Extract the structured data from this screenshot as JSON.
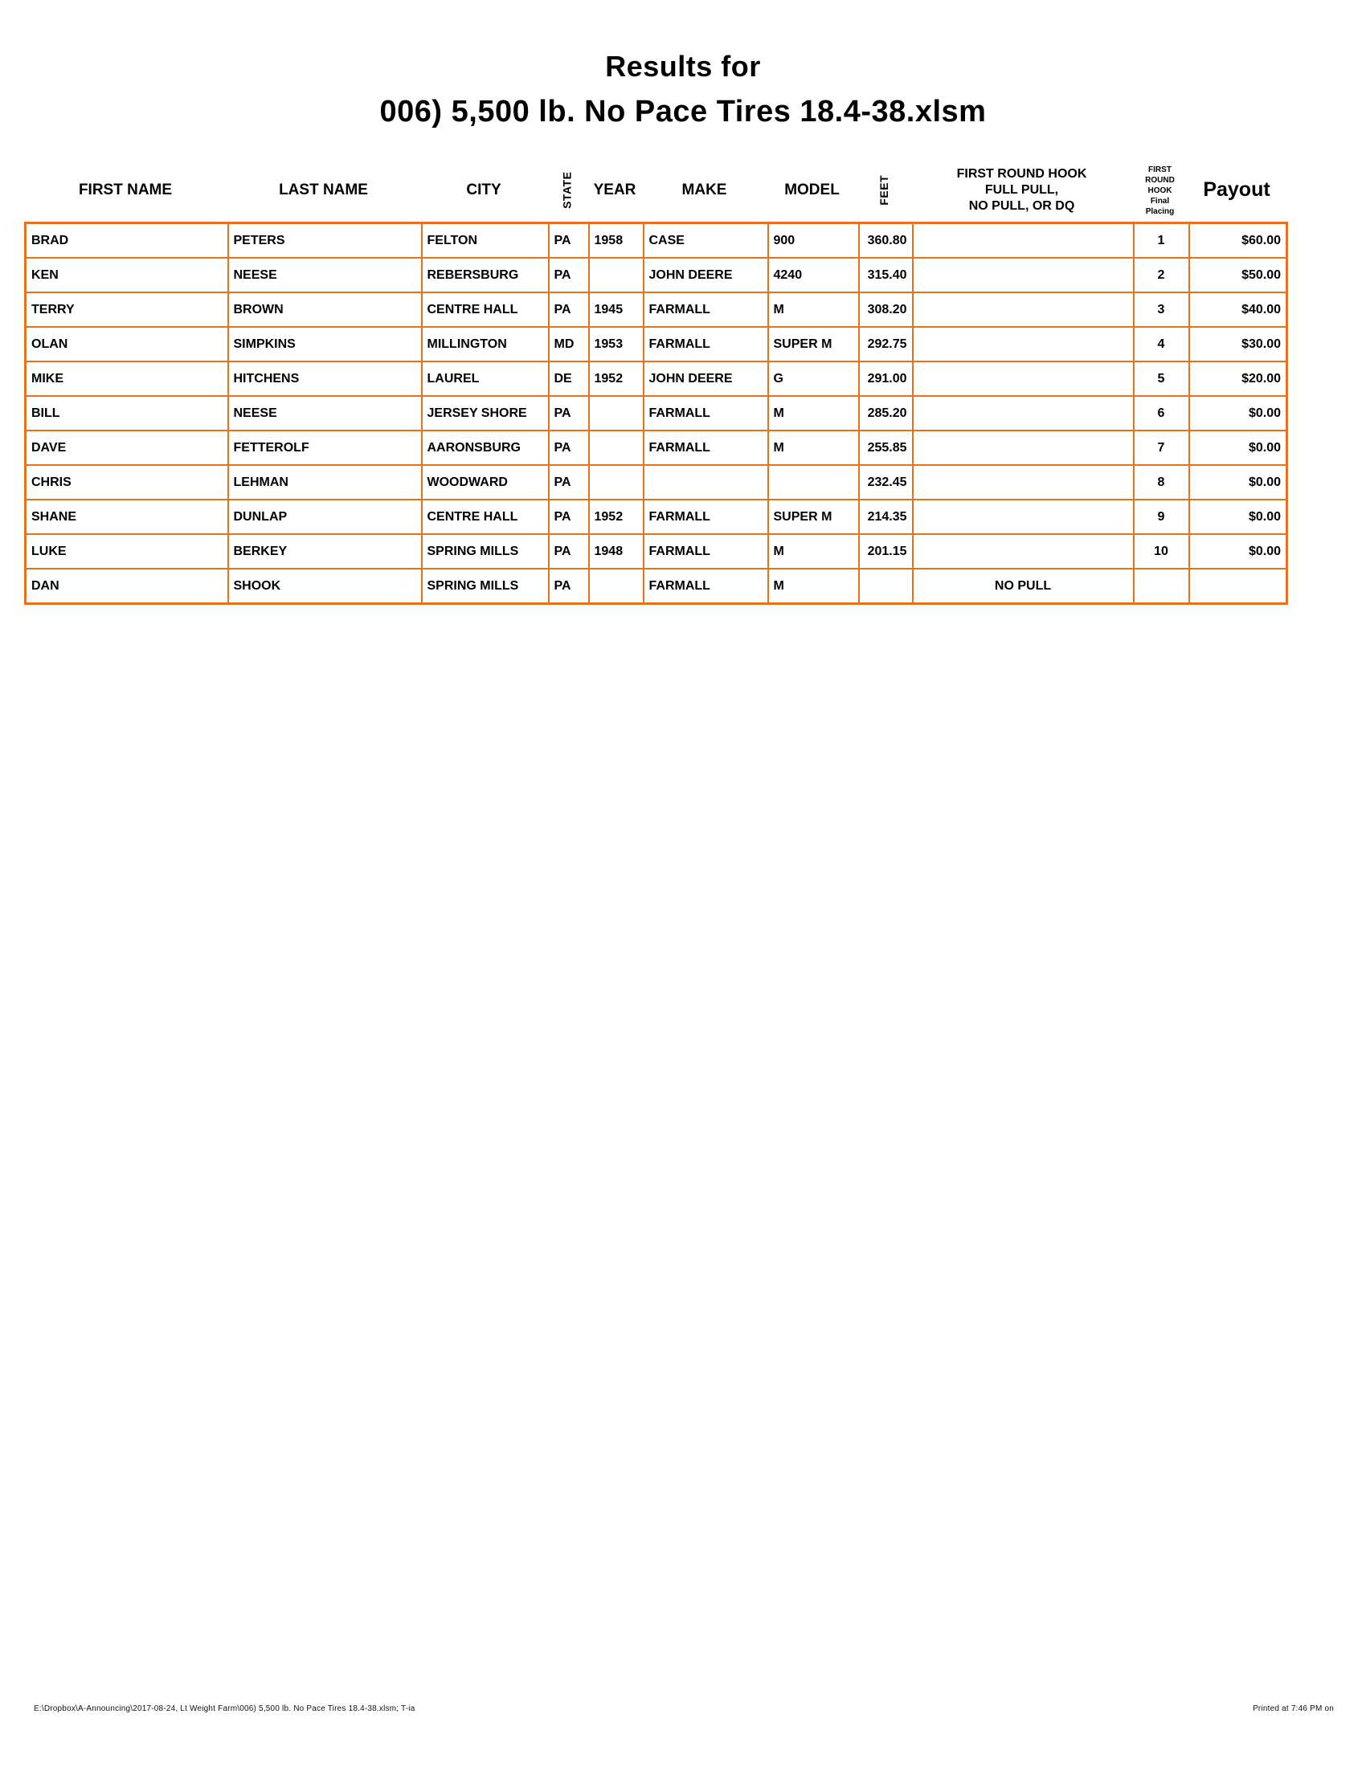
{
  "title": {
    "line1": "Results for",
    "line2": "006) 5,500 lb. No Pace Tires 18.4-38.xlsm"
  },
  "colors": {
    "table_border": "#E8711F",
    "text": "#000000"
  },
  "columns": [
    {
      "key": "first-name",
      "label": "FIRST NAME"
    },
    {
      "key": "last-name",
      "label": "LAST NAME"
    },
    {
      "key": "city",
      "label": "CITY"
    },
    {
      "key": "state",
      "label": "STATE"
    },
    {
      "key": "year",
      "label": "YEAR"
    },
    {
      "key": "make",
      "label": "MAKE"
    },
    {
      "key": "model",
      "label": "MODEL"
    },
    {
      "key": "feet",
      "label": "FEET"
    },
    {
      "key": "hook",
      "label": "FIRST ROUND HOOK\nFULL PULL,\nNO PULL, OR DQ"
    },
    {
      "key": "placing",
      "label": "FIRST\nROUND\nHOOK\nFinal\nPlacing"
    },
    {
      "key": "payout",
      "label": "Payout"
    }
  ],
  "rows": [
    [
      "BRAD",
      "PETERS",
      "FELTON",
      "PA",
      "1958",
      "CASE",
      "900",
      "360.80",
      "",
      "1",
      "$60.00"
    ],
    [
      "KEN",
      "NEESE",
      "REBERSBURG",
      "PA",
      "",
      "JOHN DEERE",
      "4240",
      "315.40",
      "",
      "2",
      "$50.00"
    ],
    [
      "TERRY",
      "BROWN",
      "CENTRE HALL",
      "PA",
      "1945",
      "FARMALL",
      "M",
      "308.20",
      "",
      "3",
      "$40.00"
    ],
    [
      "OLAN",
      "SIMPKINS",
      "MILLINGTON",
      "MD",
      "1953",
      "FARMALL",
      "SUPER M",
      "292.75",
      "",
      "4",
      "$30.00"
    ],
    [
      "MIKE",
      "HITCHENS",
      "LAUREL",
      "DE",
      "1952",
      "JOHN DEERE",
      "G",
      "291.00",
      "",
      "5",
      "$20.00"
    ],
    [
      "BILL",
      "NEESE",
      "JERSEY SHORE",
      "PA",
      "",
      "FARMALL",
      "M",
      "285.20",
      "",
      "6",
      "$0.00"
    ],
    [
      "DAVE",
      "FETTEROLF",
      "AARONSBURG",
      "PA",
      "",
      "FARMALL",
      "M",
      "255.85",
      "",
      "7",
      "$0.00"
    ],
    [
      "CHRIS",
      "LEHMAN",
      "WOODWARD",
      "PA",
      "",
      "",
      "",
      "232.45",
      "",
      "8",
      "$0.00"
    ],
    [
      "SHANE",
      "DUNLAP",
      "CENTRE HALL",
      "PA",
      "1952",
      "FARMALL",
      "SUPER M",
      "214.35",
      "",
      "9",
      "$0.00"
    ],
    [
      "LUKE",
      "BERKEY",
      "SPRING MILLS",
      "PA",
      "1948",
      "FARMALL",
      "M",
      "201.15",
      "",
      "10",
      "$0.00"
    ],
    [
      "DAN",
      "SHOOK",
      "SPRING MILLS",
      "PA",
      "",
      "FARMALL",
      "M",
      "",
      "NO PULL",
      "",
      ""
    ]
  ],
  "footer": {
    "left": "E:\\Dropbox\\A-Announcing\\2017-08-24, Lt Weight Farm\\006) 5,500 lb. No Pace Tires 18.4-38.xlsm; T-ia",
    "right": "Printed at 7:46 PM on"
  }
}
